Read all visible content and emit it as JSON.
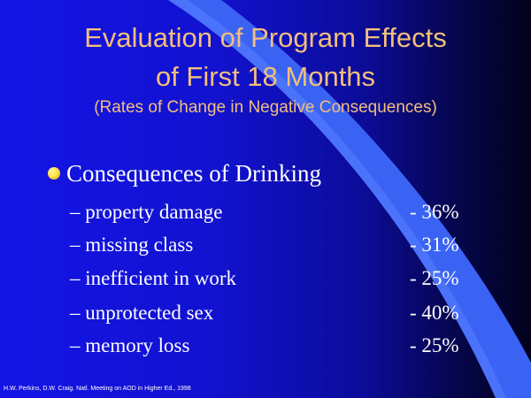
{
  "slide": {
    "title_line1": "Evaluation of Program Effects",
    "title_line2": "of First 18 Months",
    "subtitle": "(Rates of Change in Negative Consequences)",
    "bullet": {
      "heading": "Consequences of Drinking",
      "items": [
        {
          "label": "– property damage",
          "value": "- 36%"
        },
        {
          "label": "– missing class",
          "value": "- 31%"
        },
        {
          "label": "– inefficient in work",
          "value": "- 25%"
        },
        {
          "label": "– unprotected sex",
          "value": "- 40%"
        },
        {
          "label": "– memory loss",
          "value": "- 25%"
        }
      ]
    },
    "citation": "H.W. Perkins, D.W. Craig. Natl. Meeting on AOD in Higher Ed., 1998"
  },
  "colors": {
    "title": "#f3be7c",
    "text": "#ffffff",
    "background_left": "#1414e6",
    "background_right": "#02021c",
    "swoosh": "#3a63f4",
    "bullet_dot": "#ffe34a"
  }
}
